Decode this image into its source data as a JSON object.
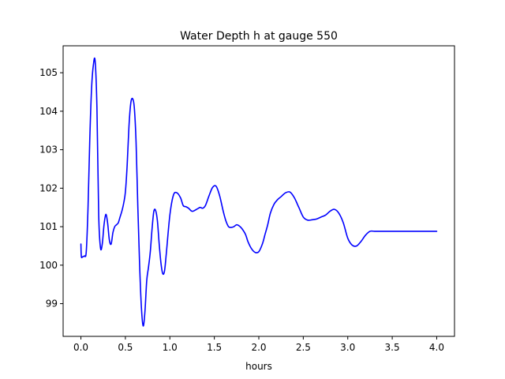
{
  "chart_data": {
    "type": "line",
    "title": "Water Depth h at gauge 550",
    "xlabel": "hours",
    "ylabel": "",
    "xlim": [
      -0.2,
      4.2
    ],
    "ylim": [
      98.15,
      105.7
    ],
    "xticks": [
      0.0,
      0.5,
      1.0,
      1.5,
      2.0,
      2.5,
      3.0,
      3.5,
      4.0
    ],
    "xtick_labels": [
      "0.0",
      "0.5",
      "1.0",
      "1.5",
      "2.0",
      "2.5",
      "3.0",
      "3.5",
      "4.0"
    ],
    "yticks": [
      99,
      100,
      101,
      102,
      103,
      104,
      105
    ],
    "ytick_labels": [
      "99",
      "100",
      "101",
      "102",
      "103",
      "104",
      "105"
    ],
    "grid": false,
    "series": [
      {
        "color": "#0000ff",
        "x": [
          0.0,
          0.005,
          0.02,
          0.04,
          0.06,
          0.08,
          0.1,
          0.12,
          0.14,
          0.16,
          0.18,
          0.2,
          0.22,
          0.24,
          0.26,
          0.28,
          0.3,
          0.32,
          0.34,
          0.36,
          0.38,
          0.4,
          0.42,
          0.44,
          0.46,
          0.48,
          0.5,
          0.52,
          0.54,
          0.56,
          0.58,
          0.6,
          0.62,
          0.64,
          0.66,
          0.68,
          0.7,
          0.72,
          0.74,
          0.76,
          0.78,
          0.8,
          0.82,
          0.84,
          0.86,
          0.88,
          0.9,
          0.92,
          0.94,
          0.96,
          1.0,
          1.04,
          1.08,
          1.12,
          1.15,
          1.18,
          1.21,
          1.25,
          1.3,
          1.34,
          1.37,
          1.4,
          1.44,
          1.48,
          1.52,
          1.56,
          1.6,
          1.63,
          1.66,
          1.69,
          1.72,
          1.75,
          1.78,
          1.81,
          1.85,
          1.88,
          1.92,
          1.96,
          2.0,
          2.04,
          2.07,
          2.1,
          2.13,
          2.17,
          2.21,
          2.25,
          2.3,
          2.35,
          2.4,
          2.45,
          2.5,
          2.55,
          2.6,
          2.65,
          2.7,
          2.75,
          2.8,
          2.85,
          2.9,
          2.95,
          3.0,
          3.05,
          3.1,
          3.15,
          3.2,
          3.25,
          3.3,
          3.35,
          3.4,
          3.45,
          3.5,
          3.55,
          3.6,
          3.65,
          3.7,
          3.75,
          3.8,
          3.85,
          3.9,
          3.95,
          4.0
        ],
        "y": [
          100.55,
          100.22,
          100.22,
          100.24,
          100.35,
          101.5,
          103.3,
          104.6,
          105.2,
          105.3,
          104.1,
          101.3,
          100.45,
          100.55,
          101.05,
          101.32,
          101.1,
          100.65,
          100.55,
          100.85,
          101.0,
          101.05,
          101.1,
          101.25,
          101.4,
          101.6,
          101.9,
          102.6,
          103.6,
          104.2,
          104.33,
          104.1,
          103.2,
          101.5,
          100.0,
          98.9,
          98.42,
          98.8,
          99.6,
          99.95,
          100.35,
          100.95,
          101.4,
          101.42,
          101.15,
          100.55,
          100.05,
          99.78,
          99.85,
          100.3,
          101.3,
          101.82,
          101.88,
          101.75,
          101.55,
          101.52,
          101.48,
          101.4,
          101.45,
          101.5,
          101.48,
          101.55,
          101.8,
          102.02,
          102.05,
          101.8,
          101.4,
          101.15,
          101.0,
          100.98,
          101.0,
          101.05,
          101.02,
          100.95,
          100.8,
          100.6,
          100.42,
          100.33,
          100.35,
          100.55,
          100.8,
          101.05,
          101.35,
          101.58,
          101.7,
          101.78,
          101.88,
          101.9,
          101.75,
          101.5,
          101.25,
          101.17,
          101.18,
          101.2,
          101.25,
          101.3,
          101.4,
          101.45,
          101.35,
          101.1,
          100.7,
          100.52,
          100.5,
          100.62,
          100.78,
          100.88,
          100.88,
          100.88,
          100.88,
          100.88,
          100.88,
          100.88,
          100.88,
          100.88,
          100.88,
          100.88,
          100.88,
          100.88,
          100.88,
          100.88,
          100.88
        ]
      }
    ]
  }
}
